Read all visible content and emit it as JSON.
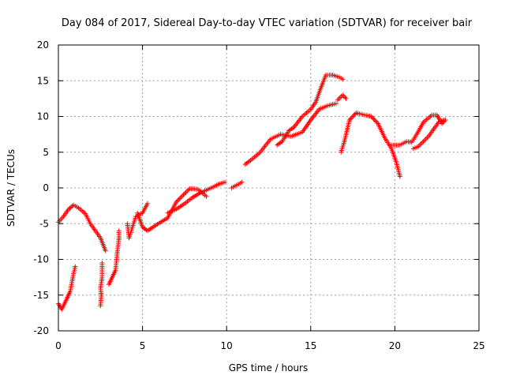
{
  "chart_data": {
    "type": "scatter",
    "title": "Day 084 of 2017, Sidereal Day-to-day VTEC variation (SDTVAR) for receiver bair",
    "xlabel": "GPS time / hours",
    "ylabel": "SDTVAR / TECUs",
    "xlim": [
      0,
      25
    ],
    "ylim": [
      -20,
      20
    ],
    "xticks": [
      0,
      5,
      10,
      15,
      20,
      25
    ],
    "yticks": [
      -20,
      -15,
      -10,
      -5,
      0,
      5,
      10,
      15,
      20
    ],
    "grid": true,
    "marker": "+",
    "color": "#ff0000",
    "series": [
      {
        "points": [
          [
            0,
            -4.8
          ],
          [
            0.3,
            -4.0
          ],
          [
            0.6,
            -3.0
          ],
          [
            0.9,
            -2.4
          ],
          [
            1.2,
            -2.8
          ],
          [
            1.6,
            -3.6
          ],
          [
            1.9,
            -5.0
          ],
          [
            2.2,
            -6.0
          ],
          [
            2.5,
            -7.0
          ],
          [
            2.8,
            -8.8
          ]
        ]
      },
      {
        "points": [
          [
            0,
            -16.2
          ],
          [
            0.2,
            -17.0
          ],
          [
            0.5,
            -15.5
          ],
          [
            0.7,
            -14.5
          ],
          [
            0.9,
            -12.0
          ],
          [
            1.0,
            -11.0
          ]
        ]
      },
      {
        "points": [
          [
            2.5,
            -16.5
          ],
          [
            2.55,
            -15.0
          ],
          [
            2.5,
            -14.0
          ],
          [
            2.6,
            -12.5
          ],
          [
            2.6,
            -10.5
          ]
        ]
      },
      {
        "points": [
          [
            3.0,
            -13.5
          ],
          [
            3.2,
            -12.5
          ],
          [
            3.4,
            -11.5
          ],
          [
            3.5,
            -9.0
          ],
          [
            3.6,
            -7.0
          ],
          [
            3.6,
            -6.0
          ]
        ]
      },
      {
        "points": [
          [
            4.1,
            -5.0
          ],
          [
            4.2,
            -7.0
          ],
          [
            4.4,
            -5.5
          ],
          [
            4.6,
            -4.0
          ],
          [
            5.0,
            -3.5
          ],
          [
            5.3,
            -2.2
          ]
        ]
      },
      {
        "points": [
          [
            4.7,
            -3.5
          ],
          [
            5.0,
            -5.5
          ],
          [
            5.3,
            -6.0
          ],
          [
            5.8,
            -5.2
          ],
          [
            6.5,
            -4.2
          ],
          [
            7.0,
            -2.0
          ],
          [
            7.5,
            -0.8
          ],
          [
            7.8,
            -0.1
          ],
          [
            8.3,
            -0.2
          ],
          [
            8.8,
            -1.2
          ]
        ]
      },
      {
        "points": [
          [
            6.5,
            -3.5
          ],
          [
            7.0,
            -3.0
          ],
          [
            7.5,
            -2.2
          ],
          [
            8.0,
            -1.3
          ],
          [
            8.5,
            -0.6
          ],
          [
            9.0,
            -0.1
          ],
          [
            9.5,
            0.5
          ],
          [
            9.9,
            0.8
          ]
        ]
      },
      {
        "points": [
          [
            10.3,
            0.0
          ],
          [
            10.6,
            0.4
          ],
          [
            10.9,
            0.8
          ]
        ]
      },
      {
        "points": [
          [
            11.1,
            3.3
          ],
          [
            11.5,
            4.0
          ],
          [
            12.0,
            5.0
          ],
          [
            12.6,
            6.8
          ],
          [
            13.2,
            7.5
          ],
          [
            13.8,
            7.2
          ],
          [
            14.5,
            7.8
          ],
          [
            15.0,
            9.5
          ],
          [
            15.5,
            11.0
          ],
          [
            16.0,
            11.5
          ],
          [
            16.5,
            11.8
          ]
        ]
      },
      {
        "points": [
          [
            13.0,
            6.0
          ],
          [
            13.3,
            6.5
          ],
          [
            13.7,
            8.0
          ],
          [
            14.0,
            8.5
          ],
          [
            14.5,
            10.0
          ],
          [
            15.0,
            11.0
          ],
          [
            15.3,
            12.0
          ],
          [
            15.6,
            14.0
          ],
          [
            15.9,
            15.8
          ],
          [
            16.3,
            15.8
          ],
          [
            16.7,
            15.5
          ],
          [
            16.9,
            15.2
          ]
        ]
      },
      {
        "points": [
          [
            16.6,
            12.3
          ],
          [
            16.9,
            13.0
          ],
          [
            17.1,
            12.5
          ]
        ]
      },
      {
        "points": [
          [
            16.8,
            5.0
          ],
          [
            17.0,
            6.5
          ],
          [
            17.3,
            9.5
          ],
          [
            17.7,
            10.5
          ],
          [
            18.2,
            10.2
          ],
          [
            18.6,
            10.0
          ],
          [
            19.0,
            9.0
          ],
          [
            19.4,
            7.0
          ],
          [
            19.8,
            5.5
          ],
          [
            20.1,
            3.5
          ],
          [
            20.3,
            1.6
          ]
        ]
      },
      {
        "points": [
          [
            19.8,
            6.0
          ],
          [
            20.3,
            6.0
          ],
          [
            20.7,
            6.5
          ],
          [
            21.0,
            6.4
          ],
          [
            21.3,
            7.5
          ],
          [
            21.7,
            9.2
          ],
          [
            22.2,
            10.2
          ],
          [
            22.5,
            10.2
          ],
          [
            22.8,
            9.0
          ],
          [
            23.0,
            9.5
          ]
        ]
      },
      {
        "points": [
          [
            21.1,
            5.5
          ],
          [
            21.4,
            5.8
          ],
          [
            21.7,
            6.5
          ],
          [
            22.0,
            7.2
          ],
          [
            22.3,
            8.2
          ],
          [
            22.6,
            9.2
          ],
          [
            22.9,
            9.5
          ]
        ]
      }
    ]
  }
}
